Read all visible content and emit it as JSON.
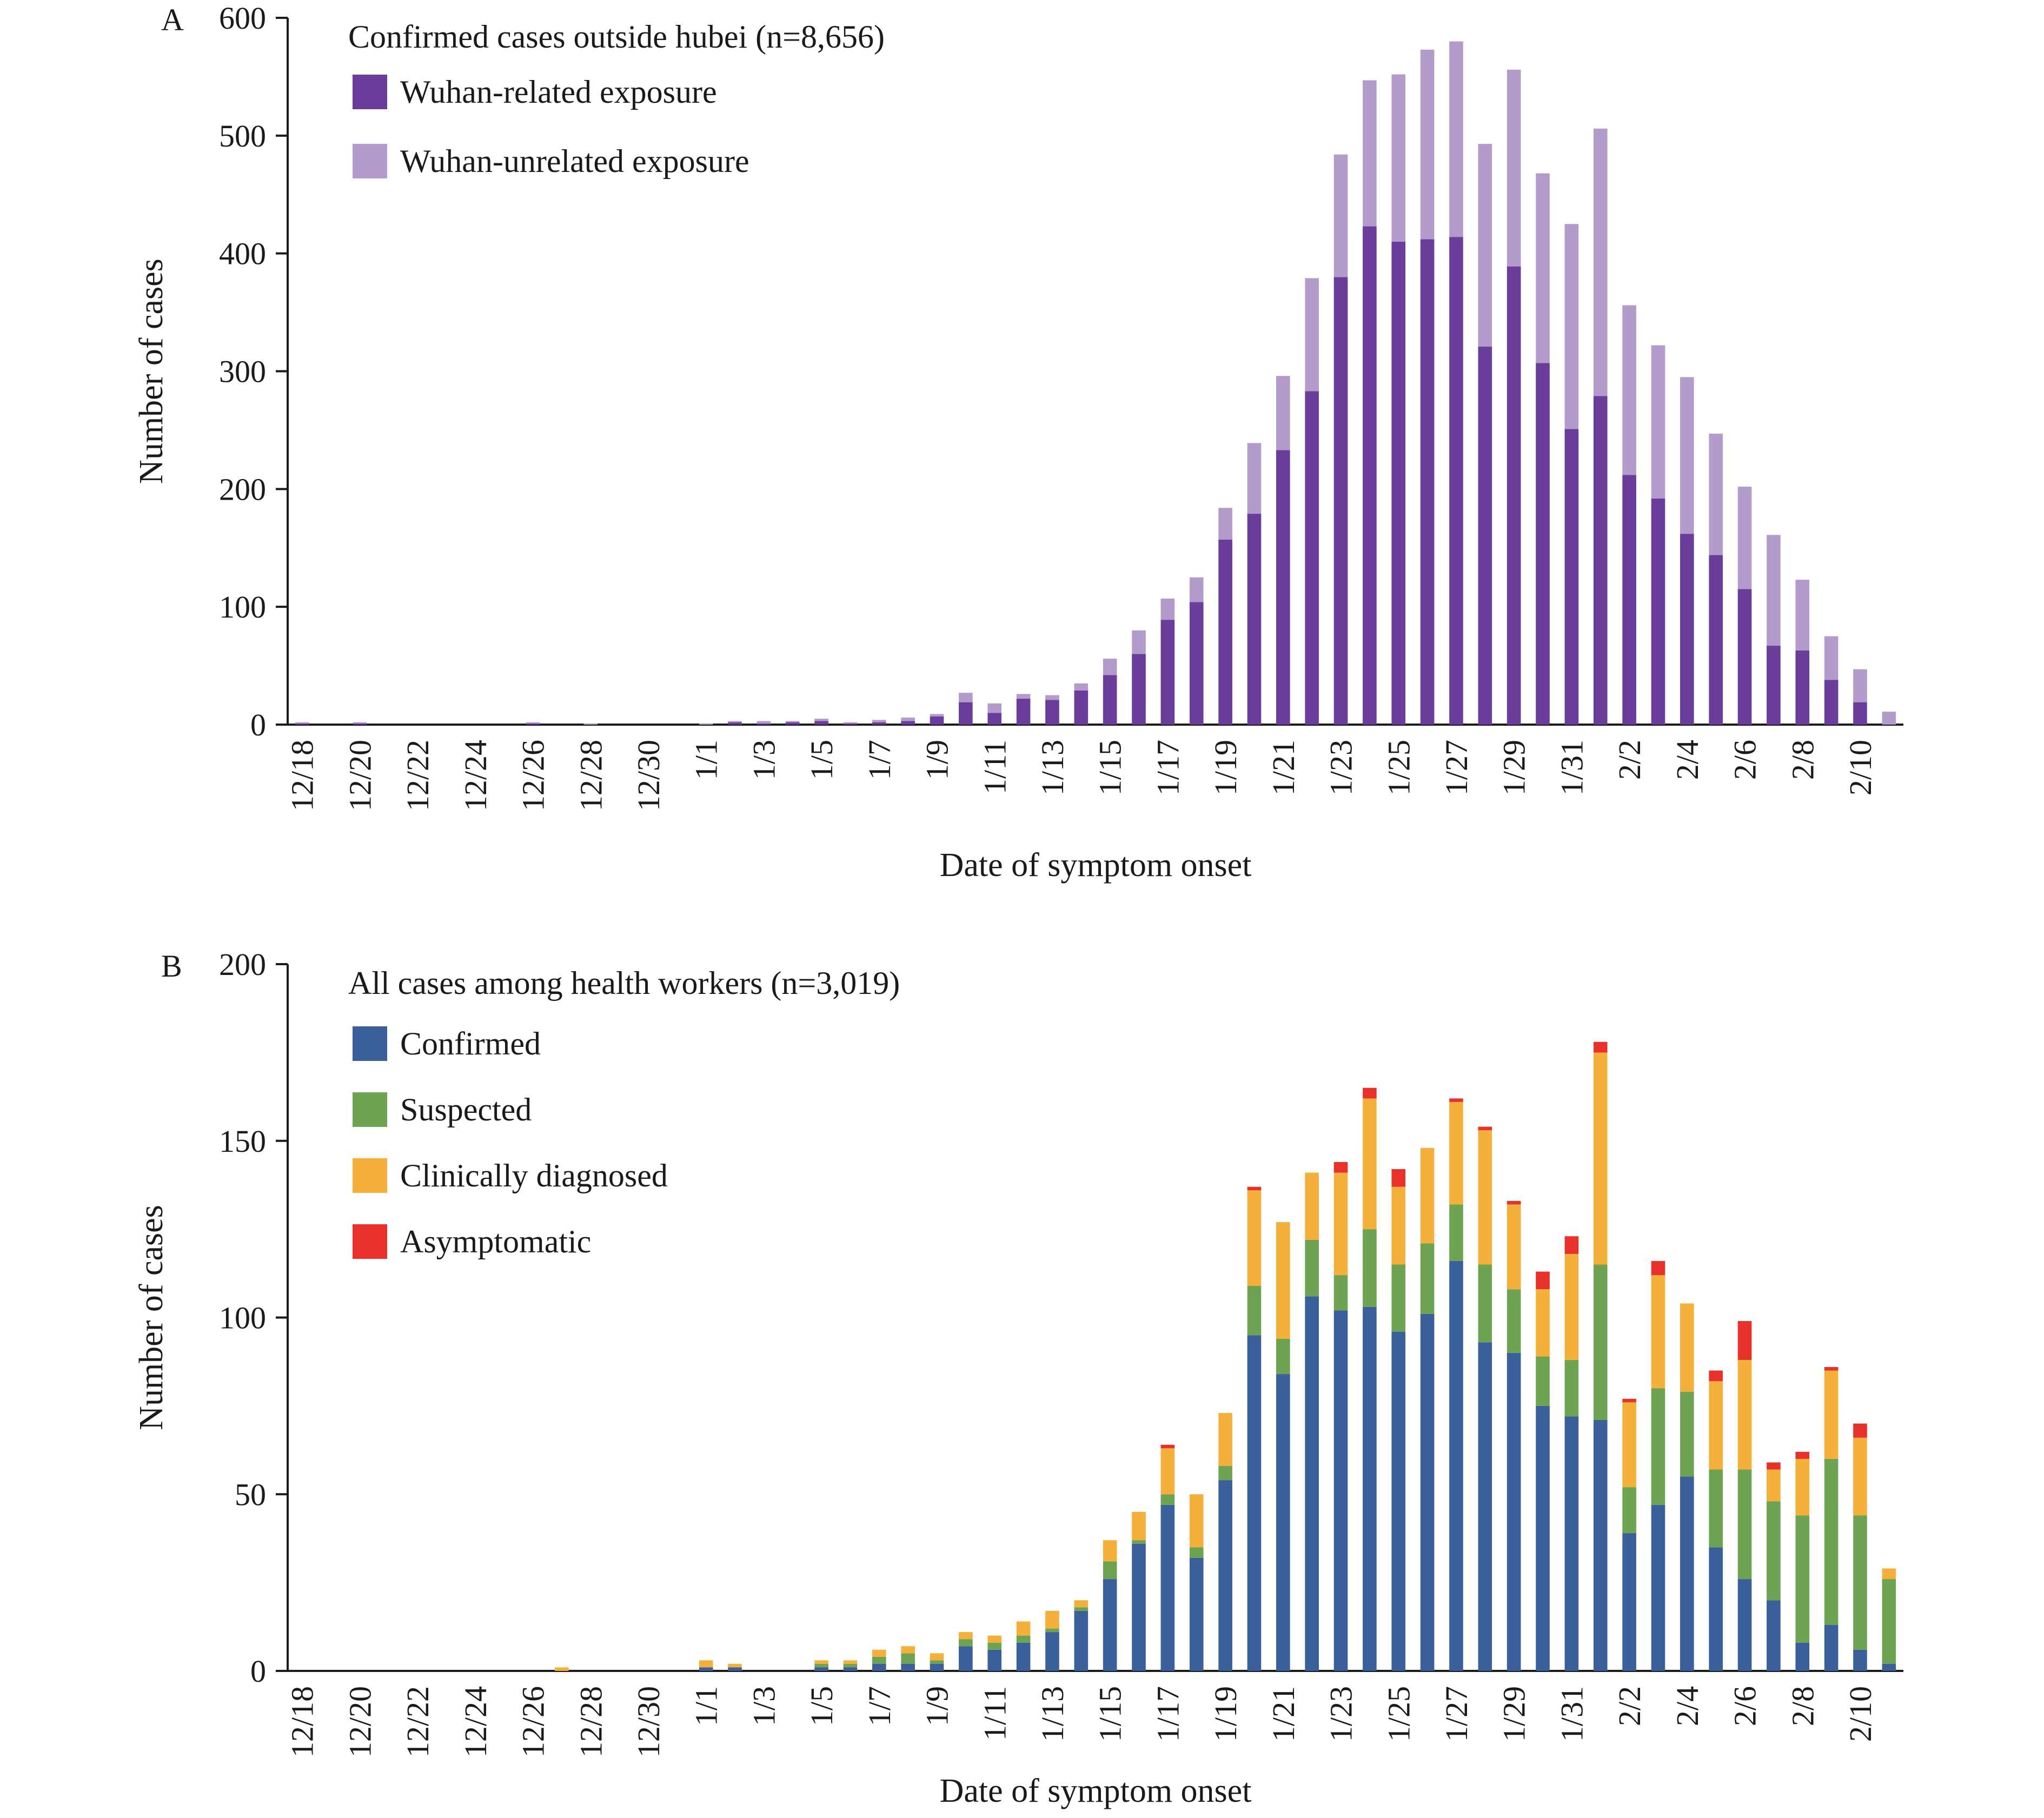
{
  "chart_data": [
    {
      "type": "bar",
      "stacked": true,
      "panel_label": "A",
      "legend_title": "Confirmed cases outside hubei (n=8,656)",
      "xlabel": "Date of symptom onset",
      "ylabel": "Number of cases",
      "ylim": [
        0,
        600
      ],
      "yticks": [
        0,
        100,
        200,
        300,
        400,
        500,
        600
      ],
      "tick_labels": [
        "12/18",
        "12/20",
        "12/22",
        "12/24",
        "12/26",
        "12/28",
        "12/30",
        "1/1",
        "1/3",
        "1/5",
        "1/7",
        "1/9",
        "1/11",
        "1/13",
        "1/15",
        "1/17",
        "1/19",
        "1/21",
        "1/23",
        "1/25",
        "1/27",
        "1/29",
        "1/31",
        "2/2",
        "2/4",
        "2/6",
        "2/8",
        "2/10"
      ],
      "categories": [
        "12/18",
        "12/19",
        "12/20",
        "12/21",
        "12/22",
        "12/23",
        "12/24",
        "12/25",
        "12/26",
        "12/27",
        "12/28",
        "12/29",
        "12/30",
        "12/31",
        "1/1",
        "1/2",
        "1/3",
        "1/4",
        "1/5",
        "1/6",
        "1/7",
        "1/8",
        "1/9",
        "1/10",
        "1/11",
        "1/12",
        "1/13",
        "1/14",
        "1/15",
        "1/16",
        "1/17",
        "1/18",
        "1/19",
        "1/20",
        "1/21",
        "1/22",
        "1/23",
        "1/24",
        "1/25",
        "1/26",
        "1/27",
        "1/28",
        "1/29",
        "1/30",
        "1/31",
        "2/1",
        "2/2",
        "2/3",
        "2/4",
        "2/5",
        "2/6",
        "2/7",
        "2/8",
        "2/9",
        "2/10",
        "2/11"
      ],
      "series": [
        {
          "name": "Wuhan-related exposure",
          "color": "#6a3d9a",
          "values": [
            1,
            0,
            1,
            0,
            0,
            0,
            0,
            0,
            1,
            0,
            0,
            0,
            0,
            0,
            0,
            2,
            1,
            2,
            3,
            1,
            2,
            3,
            7,
            19,
            10,
            22,
            21,
            29,
            42,
            60,
            89,
            104,
            157,
            179,
            233,
            283,
            380,
            423,
            410,
            412,
            414,
            321,
            389,
            307,
            251,
            279,
            212,
            192,
            162,
            144,
            115,
            67,
            63,
            38,
            19,
            0
          ]
        },
        {
          "name": "Wuhan-unrelated exposure",
          "color": "#b39ccb",
          "values": [
            1,
            0,
            1,
            0,
            0,
            0,
            0,
            0,
            1,
            0,
            1,
            0,
            0,
            0,
            1,
            1,
            2,
            1,
            2,
            1,
            2,
            3,
            2,
            8,
            8,
            4,
            4,
            6,
            14,
            20,
            18,
            21,
            27,
            60,
            63,
            96,
            104,
            124,
            142,
            161,
            166,
            172,
            167,
            161,
            174,
            227,
            144,
            130,
            133,
            103,
            87,
            94,
            60,
            37,
            28,
            11
          ]
        }
      ]
    },
    {
      "type": "bar",
      "stacked": true,
      "panel_label": "B",
      "legend_title": "All cases among health workers (n=3,019)",
      "xlabel": "Date of symptom onset",
      "ylabel": "Number of cases",
      "ylim": [
        0,
        200
      ],
      "yticks": [
        0,
        50,
        100,
        150,
        200
      ],
      "tick_labels": [
        "12/18",
        "12/20",
        "12/22",
        "12/24",
        "12/26",
        "12/28",
        "12/30",
        "1/1",
        "1/3",
        "1/5",
        "1/7",
        "1/9",
        "1/11",
        "1/13",
        "1/15",
        "1/17",
        "1/19",
        "1/21",
        "1/23",
        "1/25",
        "1/27",
        "1/29",
        "1/31",
        "2/2",
        "2/4",
        "2/6",
        "2/8",
        "2/10"
      ],
      "categories": [
        "12/18",
        "12/19",
        "12/20",
        "12/21",
        "12/22",
        "12/23",
        "12/24",
        "12/25",
        "12/26",
        "12/27",
        "12/28",
        "12/29",
        "12/30",
        "12/31",
        "1/1",
        "1/2",
        "1/3",
        "1/4",
        "1/5",
        "1/6",
        "1/7",
        "1/8",
        "1/9",
        "1/10",
        "1/11",
        "1/12",
        "1/13",
        "1/14",
        "1/15",
        "1/16",
        "1/17",
        "1/18",
        "1/19",
        "1/20",
        "1/21",
        "1/22",
        "1/23",
        "1/24",
        "1/25",
        "1/26",
        "1/27",
        "1/28",
        "1/29",
        "1/30",
        "1/31",
        "2/1",
        "2/2",
        "2/3",
        "2/4",
        "2/5",
        "2/6",
        "2/7",
        "2/8",
        "2/9",
        "2/10",
        "2/11"
      ],
      "series": [
        {
          "name": "Confirmed",
          "color": "#3a5f9a",
          "values": [
            0,
            0,
            0,
            0,
            0,
            0,
            0,
            0,
            0,
            0,
            0,
            0,
            0,
            0,
            1,
            1,
            0,
            0,
            1,
            1,
            2,
            2,
            2,
            7,
            6,
            8,
            11,
            17,
            26,
            36,
            47,
            32,
            54,
            95,
            84,
            106,
            102,
            103,
            96,
            101,
            116,
            93,
            90,
            75,
            72,
            71,
            39,
            47,
            55,
            35,
            26,
            20,
            8,
            13,
            6,
            2
          ]
        },
        {
          "name": "Suspected",
          "color": "#6da352",
          "values": [
            0,
            0,
            0,
            0,
            0,
            0,
            0,
            0,
            0,
            0,
            0,
            0,
            0,
            0,
            0,
            0,
            0,
            0,
            1,
            1,
            2,
            3,
            1,
            2,
            2,
            2,
            1,
            1,
            5,
            1,
            3,
            3,
            4,
            14,
            10,
            16,
            10,
            22,
            19,
            20,
            16,
            22,
            18,
            14,
            16,
            44,
            13,
            33,
            24,
            22,
            31,
            28,
            36,
            47,
            38,
            24
          ]
        },
        {
          "name": "Clinically diagnosed",
          "color": "#f4b03b",
          "values": [
            0,
            0,
            0,
            0,
            0,
            0,
            0,
            0,
            0,
            1,
            0,
            0,
            0,
            0,
            2,
            1,
            0,
            0,
            1,
            1,
            2,
            2,
            2,
            2,
            2,
            4,
            5,
            2,
            6,
            8,
            13,
            15,
            15,
            27,
            33,
            19,
            29,
            37,
            22,
            27,
            29,
            38,
            24,
            19,
            30,
            60,
            24,
            32,
            25,
            25,
            31,
            9,
            16,
            25,
            22,
            3
          ]
        },
        {
          "name": "Asymptomatic",
          "color": "#e8312a",
          "values": [
            0,
            0,
            0,
            0,
            0,
            0,
            0,
            0,
            0,
            0,
            0,
            0,
            0,
            0,
            0,
            0,
            0,
            0,
            0,
            0,
            0,
            0,
            0,
            0,
            0,
            0,
            0,
            0,
            0,
            0,
            1,
            0,
            0,
            1,
            0,
            0,
            3,
            3,
            5,
            0,
            1,
            1,
            1,
            5,
            5,
            3,
            1,
            4,
            0,
            3,
            11,
            2,
            2,
            1,
            4,
            0
          ]
        }
      ]
    }
  ]
}
